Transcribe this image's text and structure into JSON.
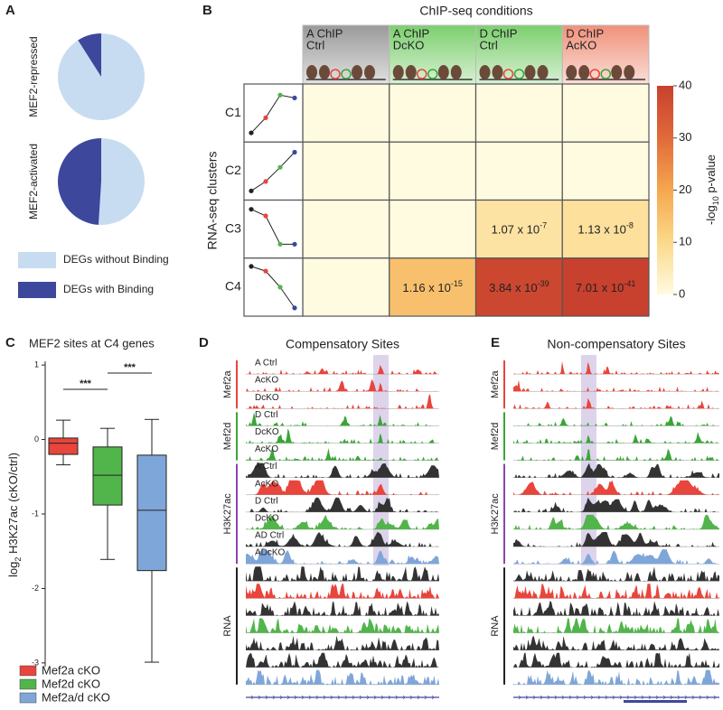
{
  "chart_data": [
    {
      "type": "pie",
      "label": "A",
      "categories": [
        "DEGs without Binding",
        "DEGs with Binding"
      ],
      "colors": [
        "#c7dcf1",
        "#3d479c"
      ],
      "pies": [
        {
          "title": "MEF2-repressed",
          "values": [
            91,
            9
          ]
        },
        {
          "title": "MEF2-activated",
          "values": [
            51,
            49
          ]
        }
      ]
    },
    {
      "type": "heatmap",
      "label": "B",
      "title": "ChIP-seq conditions",
      "y_label": "RNA-seq clusters",
      "columns": [
        {
          "background": "#9a9a9a",
          "lines": [
            {
              "text": "A ChIP",
              "color": "#e8453c"
            },
            {
              "text": "Ctrl",
              "color": "#222222"
            }
          ]
        },
        {
          "background": "#7ccf6e",
          "lines": [
            {
              "text": "A ChIP",
              "color": "#e8453c"
            },
            {
              "text": "DcKO",
              "color": "#3aa537"
            }
          ]
        },
        {
          "background": "#7ccf6e",
          "lines": [
            {
              "text": "D ChIP",
              "color": "#3aa537"
            },
            {
              "text": "Ctrl",
              "color": "#222222"
            }
          ]
        },
        {
          "background": "#f0917a",
          "lines": [
            {
              "text": "D ChIP",
              "color": "#3aa537"
            },
            {
              "text": "AcKO",
              "color": "#e8453c"
            }
          ]
        }
      ],
      "rows": [
        "C1",
        "C2",
        "C3",
        "C4"
      ],
      "values": [
        [
          0,
          0,
          0,
          0
        ],
        [
          0,
          0,
          0,
          0
        ],
        [
          0,
          0,
          6.97,
          7.95
        ],
        [
          0,
          14.94,
          38.42,
          40.15
        ]
      ],
      "value_labels": [
        [
          null,
          null,
          null,
          null
        ],
        [
          null,
          null,
          null,
          null
        ],
        [
          null,
          null,
          {
            "mantissa": "1.07 x 10",
            "exponent": "-7"
          },
          {
            "mantissa": "1.13 x 10",
            "exponent": "-8"
          }
        ],
        [
          null,
          {
            "mantissa": "1.16 x 10",
            "exponent": "-15"
          },
          {
            "mantissa": "3.84 x 10",
            "exponent": "-39"
          },
          {
            "mantissa": "7.01 x 10",
            "exponent": "-41"
          }
        ]
      ],
      "clim": [
        0,
        40
      ],
      "cticks": [
        0,
        10,
        20,
        30,
        40
      ],
      "colormap": [
        "#fffbe0",
        "#fbd98a",
        "#f5a74f",
        "#e06a3a",
        "#c8402e"
      ],
      "colorbar_label": {
        "prefix": "-log",
        "subscript": "10",
        "suffix": " p-value"
      }
    },
    {
      "type": "box",
      "label": "C",
      "title": "MEF2 sites at C4 genes",
      "y_label": {
        "prefix": "log",
        "subscript": "2",
        "suffix": " H3K27ac (cKO/ctrl)"
      },
      "ylim": [
        -3.05,
        1.05
      ],
      "yticks": [
        -3,
        -2,
        -1,
        0,
        1
      ],
      "series": [
        {
          "name": "Mef2a cKO",
          "color": "#e8453c",
          "whislo": -0.34,
          "q1": -0.2,
          "median": -0.05,
          "q3": 0.02,
          "whishi": 0.26
        },
        {
          "name": "Mef2d cKO",
          "color": "#52b54b",
          "whislo": -1.61,
          "q1": -0.88,
          "median": -0.48,
          "q3": -0.1,
          "whishi": 0.15
        },
        {
          "name": "Mef2a/d cKO",
          "color": "#7fa6d8",
          "whislo": -2.99,
          "q1": -1.76,
          "median": -0.95,
          "q3": -0.21,
          "whishi": 0.27
        }
      ],
      "significance": [
        "***",
        "***"
      ]
    },
    {
      "type": "tracks",
      "label": "D",
      "title": "Compensatory Sites",
      "groups": [
        {
          "name": "Mef2a",
          "color": "#e8453c",
          "tracks": [
            {
              "label": "A Ctrl",
              "label_color": "#222222",
              "color": "#e8453c"
            },
            {
              "label": "AcKO",
              "label_color": "#e8453c",
              "color": "#e8453c"
            },
            {
              "label": "DcKO",
              "label_color": "#3aa537",
              "color": "#e8453c"
            }
          ]
        },
        {
          "name": "Mef2d",
          "color": "#3aa537",
          "tracks": [
            {
              "label": "D Ctrl",
              "label_color": "#222222",
              "color": "#3aa537"
            },
            {
              "label": "DcKO",
              "label_color": "#3aa537",
              "color": "#3aa537"
            },
            {
              "label": "AcKO",
              "label_color": "#e8453c",
              "color": "#3aa537"
            }
          ]
        },
        {
          "name": "H3K27ac",
          "color": "#8e44ad",
          "tracks": [
            {
              "label": "A Ctrl",
              "label_color": "#222222",
              "color": "#333333"
            },
            {
              "label": "AcKO",
              "label_color": "#e8453c",
              "color": "#e8453c"
            },
            {
              "label": "D Ctrl",
              "label_color": "#222222",
              "color": "#333333"
            },
            {
              "label": "DcKO",
              "label_color": "#3aa537",
              "color": "#52b54b"
            },
            {
              "label": "AD Ctrl",
              "label_color": "#222222",
              "color": "#333333"
            },
            {
              "label": "ADcKO",
              "label_color": "#7fa6d8",
              "color": "#7fa6d8"
            }
          ]
        },
        {
          "name": "RNA",
          "color": "#222222",
          "tracks": [
            {
              "color": "#333333"
            },
            {
              "color": "#e8453c"
            },
            {
              "color": "#333333"
            },
            {
              "color": "#52b54b"
            },
            {
              "color": "#333333"
            },
            {
              "color": "#333333"
            },
            {
              "color": "#7fa6d8"
            }
          ]
        }
      ]
    },
    {
      "type": "tracks",
      "label": "E",
      "title": "Non-compensatory Sites",
      "groups": [
        {
          "name": "Mef2a",
          "color": "#e8453c",
          "tracks": [
            {
              "color": "#e8453c"
            },
            {
              "color": "#e8453c"
            },
            {
              "color": "#e8453c"
            }
          ]
        },
        {
          "name": "Mef2d",
          "color": "#3aa537",
          "tracks": [
            {
              "color": "#3aa537"
            },
            {
              "color": "#3aa537"
            },
            {
              "color": "#3aa537"
            }
          ]
        },
        {
          "name": "H3K27ac",
          "color": "#8e44ad",
          "tracks": [
            {
              "color": "#333333"
            },
            {
              "color": "#e8453c"
            },
            {
              "color": "#333333"
            },
            {
              "color": "#52b54b"
            },
            {
              "color": "#333333"
            },
            {
              "color": "#7fa6d8"
            }
          ]
        },
        {
          "name": "RNA",
          "color": "#222222",
          "tracks": [
            {
              "color": "#333333"
            },
            {
              "color": "#e8453c"
            },
            {
              "color": "#333333"
            },
            {
              "color": "#52b54b"
            },
            {
              "color": "#333333"
            },
            {
              "color": "#333333"
            },
            {
              "color": "#7fa6d8"
            }
          ]
        }
      ]
    }
  ]
}
